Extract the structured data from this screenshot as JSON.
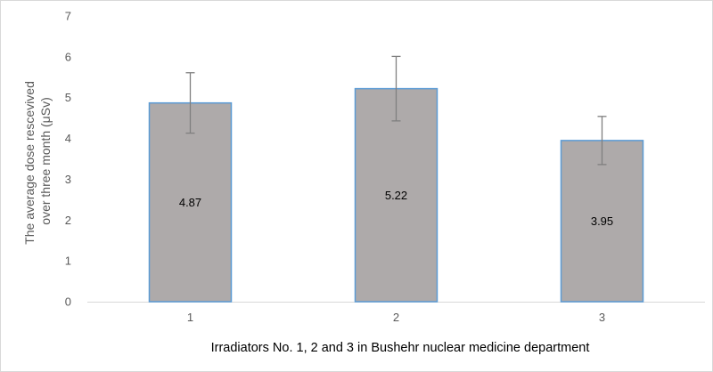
{
  "chart_data": {
    "type": "bar",
    "categories": [
      "1",
      "2",
      "3"
    ],
    "values": [
      4.87,
      5.22,
      3.95
    ],
    "data_labels": [
      "4.87",
      "5.22",
      "3.95"
    ],
    "error_bars": {
      "low": [
        4.13,
        4.43,
        3.36
      ],
      "high": [
        5.61,
        6.01,
        4.54
      ]
    },
    "y_ticks": [
      "0",
      "1",
      "2",
      "3",
      "4",
      "5",
      "6",
      "7"
    ],
    "ylim": [
      0,
      7
    ],
    "ylabel_line1": "The average dose rescevived",
    "ylabel_line2": "over three month (μSv)",
    "xlabel": "Irradiators No. 1, 2 and 3 in Bushehr nuclear medicine department",
    "grid": false,
    "legend": "none",
    "colors": {
      "bar_fill": "#aeaaaa",
      "bar_stroke": "#5b9bd5",
      "error_bar": "#7f7f7f",
      "baseline": "#d9d9d9"
    }
  }
}
